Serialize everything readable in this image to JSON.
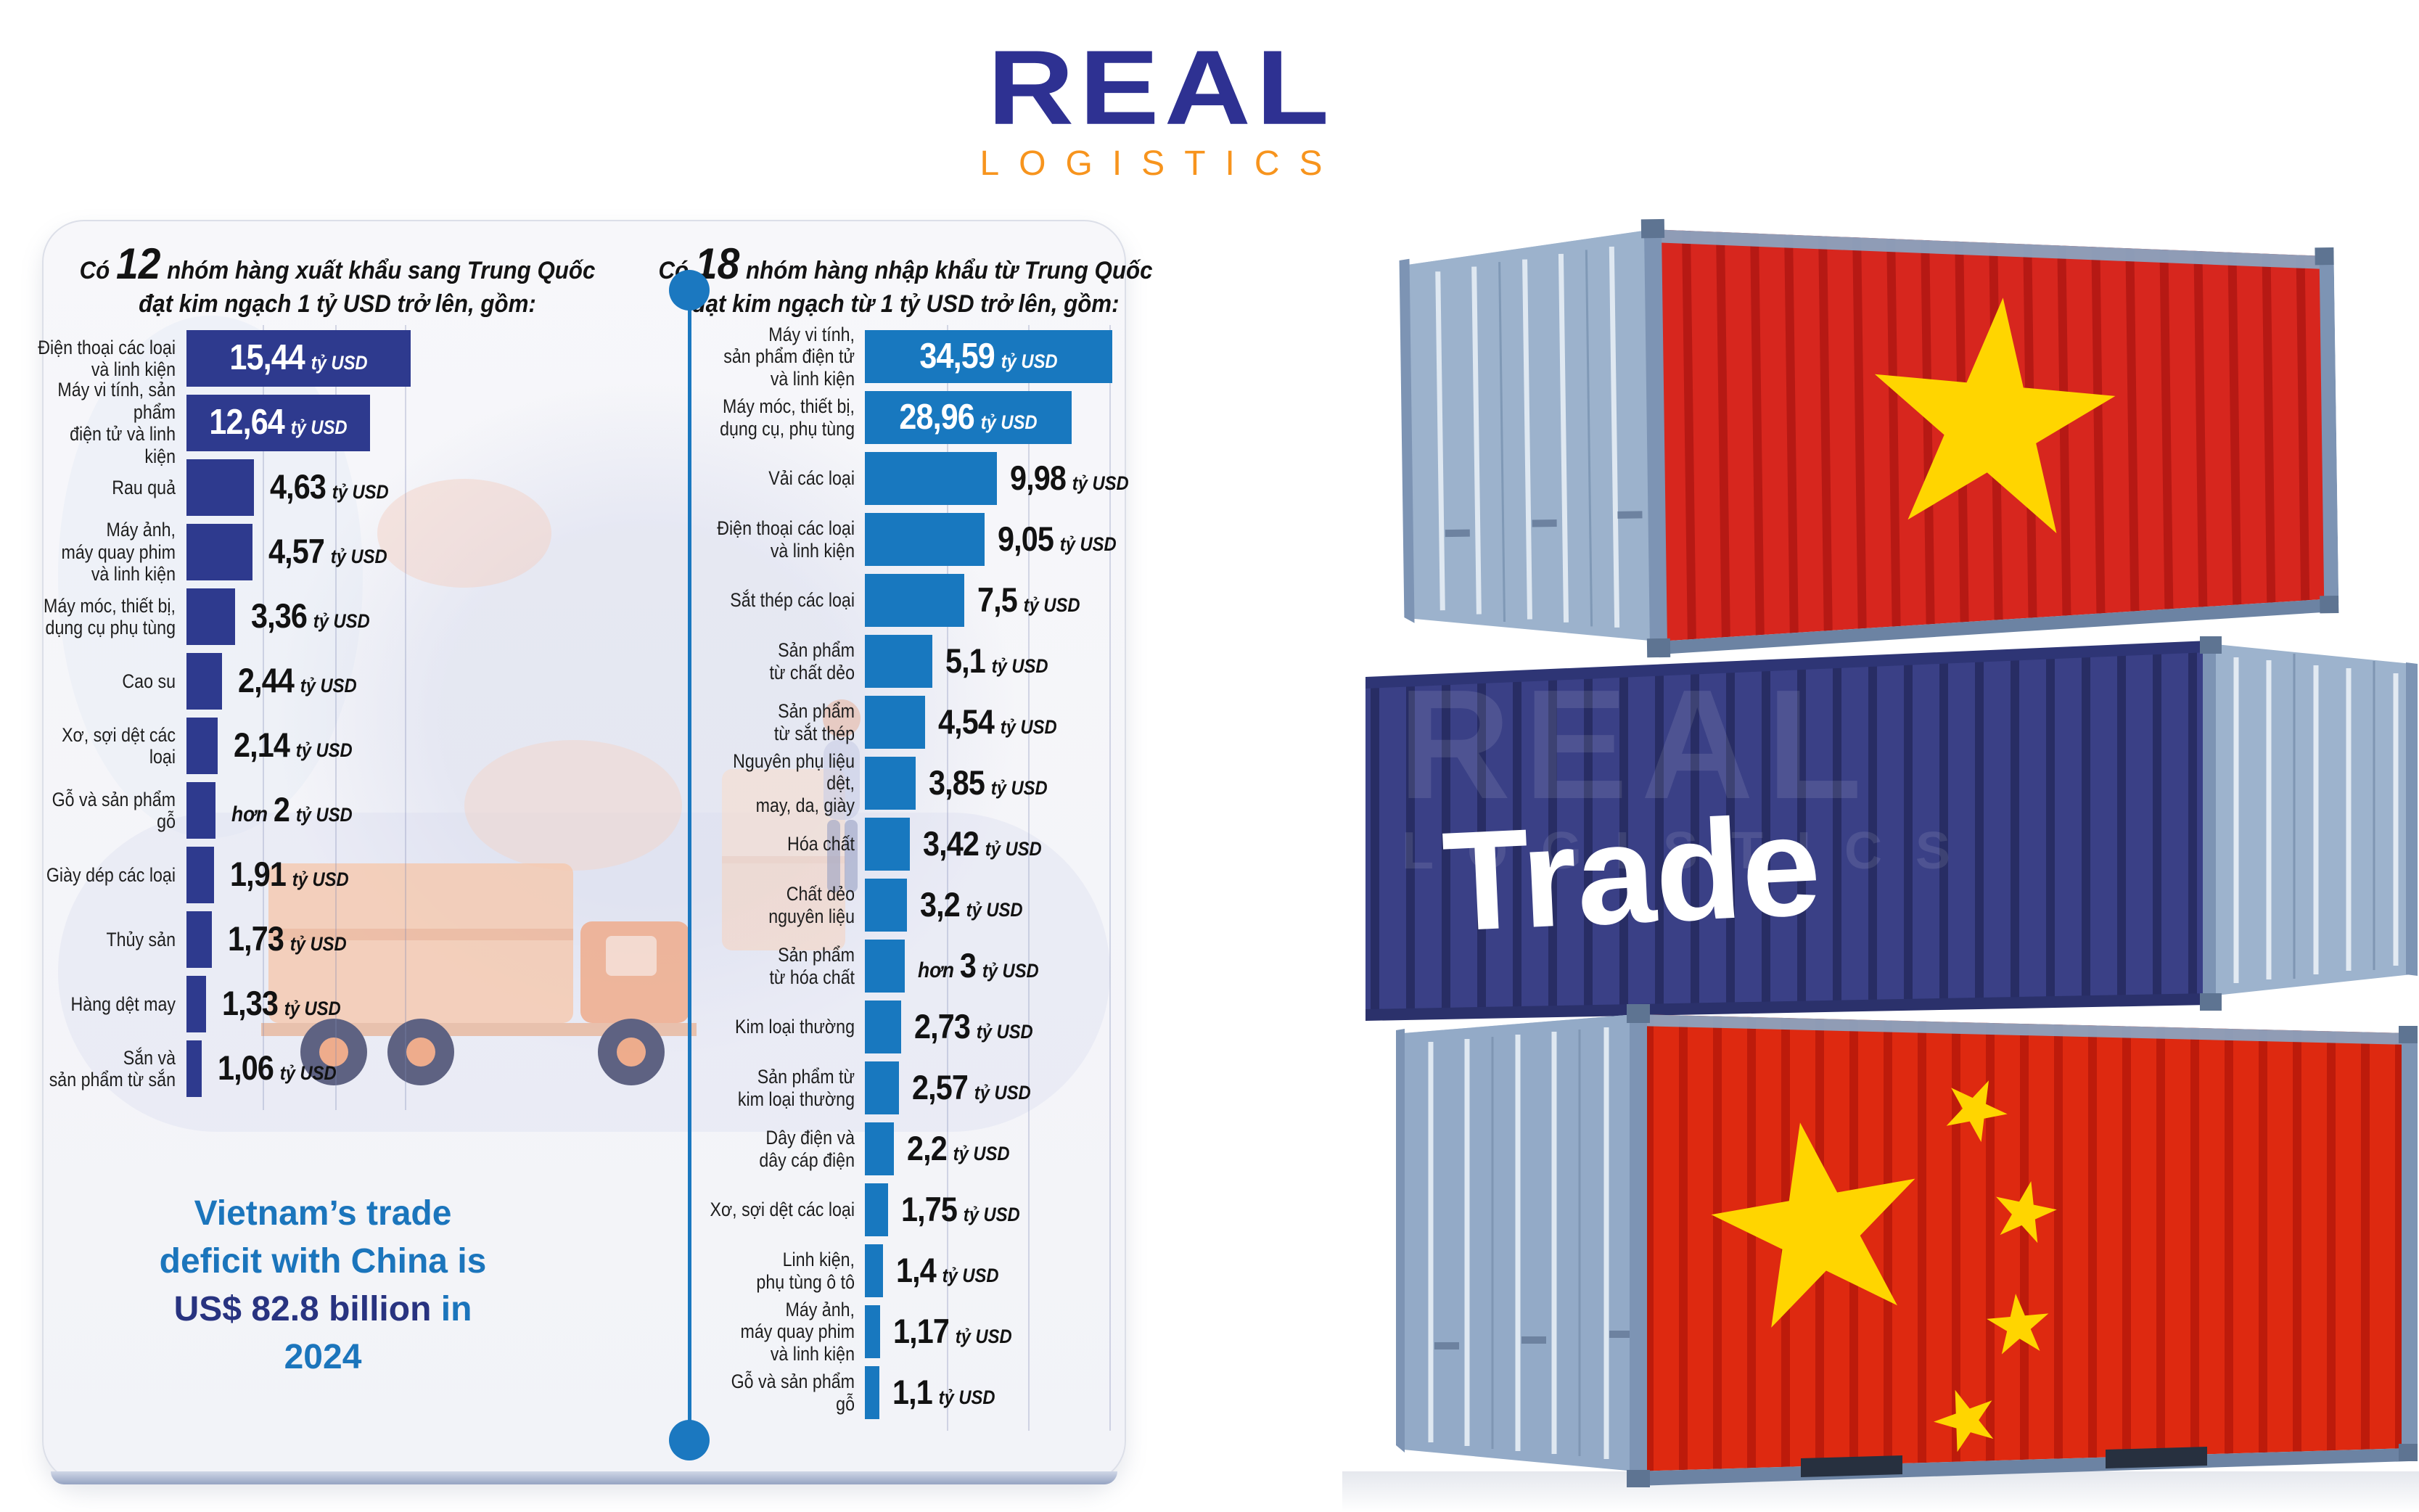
{
  "logo": {
    "name": "REAL",
    "sub": "LOGISTICS"
  },
  "colors": {
    "export_bar": "#2e3a8e",
    "import_bar": "#1878bf",
    "divider": "#1b78c0",
    "accent_light_blue": "#1b75bc",
    "accent_navy": "#283380",
    "logo_navy": "#2e3192",
    "logo_orange": "#f7941d",
    "vietnam_red": "#d7261e",
    "china_red": "#de2910",
    "star_yellow": "#ffd500"
  },
  "card": {
    "deficit": {
      "l1": "Vietnam’s trade",
      "l2": "deficit with China is",
      "strong": "US$ 82.8 billion",
      "after_strong": " in",
      "l4": "2024"
    }
  },
  "chart_data": [
    {
      "type": "bar",
      "id": "exports-to-china",
      "title_prefix": "Có ",
      "title_count": "12",
      "title_rest": " nhóm hàng xuất khẩu sang Trung Quốc",
      "title_line2": "đạt kim ngạch 1 tỷ USD trở lên, gồm:",
      "unit": "tỷ USD",
      "bar_color": "#2e3a8e",
      "xlim": [
        0,
        16
      ],
      "legend": "none",
      "grid": "faint vertical guides",
      "categories": [
        [
          "Điện thoại các loại",
          "và linh kiện"
        ],
        [
          "Máy vi tính, sản phẩm",
          "điện tử và linh kiện"
        ],
        [
          "Rau quả"
        ],
        [
          "Máy ảnh,",
          "máy quay phim",
          "và linh kiện"
        ],
        [
          "Máy móc, thiết bị,",
          "dụng cụ phụ tùng"
        ],
        [
          "Cao su"
        ],
        [
          "Xơ, sợi dệt các loại"
        ],
        [
          "Gỗ và sản phẩm gỗ"
        ],
        [
          "Giày dép các loại"
        ],
        [
          "Thủy sản"
        ],
        [
          "Hàng dệt may"
        ],
        [
          "Sắn và",
          "sản phẩm từ sắn"
        ]
      ],
      "values": [
        15.44,
        12.64,
        4.63,
        4.57,
        3.36,
        2.44,
        2.14,
        2.0,
        1.91,
        1.73,
        1.33,
        1.06
      ],
      "value_labels": [
        "15,44",
        "12,64",
        "4,63",
        "4,57",
        "3,36",
        "2,44",
        "2,14",
        "hơn 2",
        "1,91",
        "1,73",
        "1,33",
        "1,06"
      ]
    },
    {
      "type": "bar",
      "id": "imports-from-china",
      "title_prefix": "Có ",
      "title_count": "18",
      "title_rest": " nhóm hàng nhập khẩu từ Trung Quốc",
      "title_line2": "đạt kim ngạch từ 1 tỷ USD trở lên, gồm:",
      "unit": "tỷ USD",
      "bar_color": "#1878bf",
      "xlim": [
        0,
        35
      ],
      "legend": "none",
      "grid": "faint vertical guides",
      "categories": [
        [
          "Máy vi tính,",
          "sản phẩm điện tử",
          "và linh kiện"
        ],
        [
          "Máy móc, thiết bị,",
          "dụng cụ, phụ tùng"
        ],
        [
          "Vải các loại"
        ],
        [
          "Điện thoại các loại",
          "và linh kiện"
        ],
        [
          "Sắt thép các loại"
        ],
        [
          "Sản phẩm",
          "từ chất dẻo"
        ],
        [
          "Sản phẩm",
          "từ sắt thép"
        ],
        [
          "Nguyên phụ liệu dệt,",
          "may, da, giày"
        ],
        [
          "Hóa chất"
        ],
        [
          "Chất dẻo",
          "nguyên liệu"
        ],
        [
          "Sản phẩm",
          "từ hóa chất"
        ],
        [
          "Kim loại thường"
        ],
        [
          "Sản phẩm từ",
          "kim loại thường"
        ],
        [
          "Dây điện và",
          "dây cáp điện"
        ],
        [
          "Xơ, sợi dệt các loại"
        ],
        [
          "Linh kiện,",
          "phụ tùng ô tô"
        ],
        [
          "Máy ảnh,",
          "máy quay phim",
          "và linh kiện"
        ],
        [
          "Gỗ và sản phẩm gỗ"
        ]
      ],
      "values": [
        34.59,
        28.96,
        9.98,
        9.05,
        7.5,
        5.1,
        4.54,
        3.85,
        3.42,
        3.2,
        3.0,
        2.73,
        2.57,
        2.2,
        1.75,
        1.4,
        1.17,
        1.1
      ],
      "value_labels": [
        "34,59",
        "28,96",
        "9,98",
        "9,05",
        "7,5",
        "5,1",
        "4,54",
        "3,85",
        "3,42",
        "3,2",
        "hơn 3",
        "2,73",
        "2,57",
        "2,2",
        "1,75",
        "1,4",
        "1,17",
        "1,1"
      ]
    }
  ],
  "containers": {
    "trade_text": "Trade",
    "watermark": {
      "line1": "REAL",
      "line2": "LOGISTICS"
    },
    "flags": [
      "Vietnam",
      "China"
    ]
  }
}
